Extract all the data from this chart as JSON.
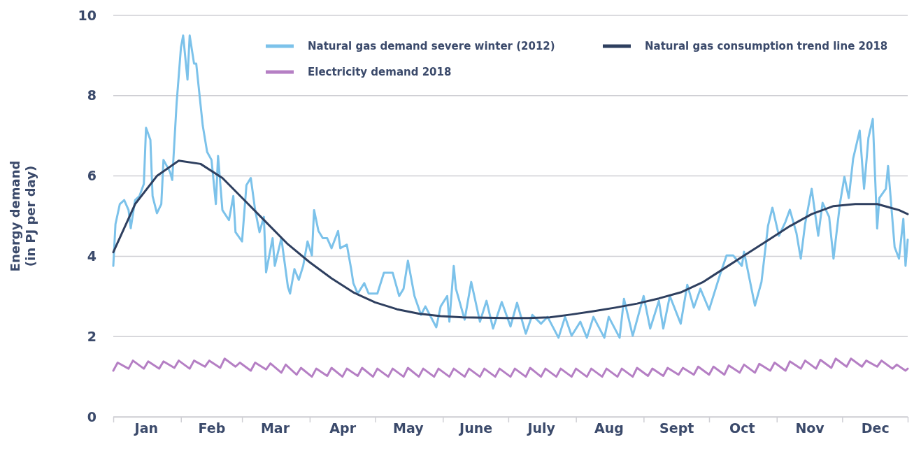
{
  "chart_data": {
    "type": "line",
    "ylabel": "Energy demand\n(in PJ per day)",
    "xlim": [
      "--01-01",
      "--12-31"
    ],
    "ylim": [
      0,
      10
    ],
    "yticks": [
      0,
      2,
      4,
      6,
      8,
      10
    ],
    "xticks": [
      {
        "value": "--01-01",
        "label": null
      },
      {
        "value": "--01-16",
        "label": "Jan"
      },
      {
        "value": "--02-01",
        "label": null
      },
      {
        "value": "--02-15",
        "label": "Feb"
      },
      {
        "value": "--03-01",
        "label": null
      },
      {
        "value": "--03-16",
        "label": "Mar"
      },
      {
        "value": "--04-01",
        "label": null
      },
      {
        "value": "--04-16",
        "label": "Apr"
      },
      {
        "value": "--05-01",
        "label": null
      },
      {
        "value": "--05-16",
        "label": "May"
      },
      {
        "value": "--06-01",
        "label": null
      },
      {
        "value": "--06-16",
        "label": "June"
      },
      {
        "value": "--07-01",
        "label": null
      },
      {
        "value": "--07-16",
        "label": "July"
      },
      {
        "value": "--08-01",
        "label": null
      },
      {
        "value": "--08-16",
        "label": "Aug"
      },
      {
        "value": "--09-01",
        "label": null
      },
      {
        "value": "--09-16",
        "label": "Sept"
      },
      {
        "value": "--10-01",
        "label": null
      },
      {
        "value": "--10-16",
        "label": "Oct"
      },
      {
        "value": "--11-01",
        "label": null
      },
      {
        "value": "--11-16",
        "label": "Nov"
      },
      {
        "value": "--12-01",
        "label": null
      },
      {
        "value": "--12-16",
        "label": "Dec"
      },
      {
        "value": "--12-31",
        "label": null
      }
    ],
    "grid": "y",
    "legend": "top right",
    "marker": "none",
    "line_style": "solid",
    "series": [
      {
        "name": "Natural gas demand severe winter (2012)",
        "color": "#7cc2ea",
        "x": [
          "--01-01",
          "--01-02",
          "--01-04",
          "--01-06",
          "--01-08",
          "--01-09",
          "--01-11",
          "--01-13",
          "--01-15",
          "--01-16",
          "--01-18",
          "--01-19",
          "--01-21",
          "--01-23",
          "--01-24",
          "--01-27",
          "--01-28",
          "--01-30",
          "--02-01",
          "--02-02",
          "--02-04",
          "--02-05",
          "--02-07",
          "--02-08",
          "--02-11",
          "--02-13",
          "--02-15",
          "--02-17",
          "--02-18",
          "--02-20",
          "--02-23",
          "--02-25",
          "--02-26",
          "--03-01",
          "--03-03",
          "--03-05",
          "--03-07",
          "--03-09",
          "--03-11",
          "--03-12",
          "--03-15",
          "--03-16",
          "--03-19",
          "--03-22",
          "--03-23",
          "--03-25",
          "--03-27",
          "--03-29",
          "--03-31",
          "--04-02",
          "--04-03",
          "--04-05",
          "--04-07",
          "--04-09",
          "--04-11",
          "--04-14",
          "--04-15",
          "--04-18",
          "--04-20",
          "--04-21",
          "--04-23",
          "--04-26",
          "--04-28",
          "--04-30",
          "--05-02",
          "--05-05",
          "--05-09",
          "--05-12",
          "--05-14",
          "--05-16",
          "--05-19",
          "--05-22",
          "--05-24",
          "--05-29",
          "--05-31",
          "--06-03",
          "--06-04",
          "--06-06",
          "--06-07",
          "--06-11",
          "--06-14",
          "--06-18",
          "--06-21",
          "--06-24",
          "--06-28",
          "--07-02",
          "--07-05",
          "--07-09",
          "--07-12",
          "--07-16",
          "--07-19",
          "--07-24",
          "--07-27",
          "--07-30",
          "--08-03",
          "--08-06",
          "--08-09",
          "--08-14",
          "--08-16",
          "--08-21",
          "--08-23",
          "--08-27",
          "--09-01",
          "--09-04",
          "--09-08",
          "--09-10",
          "--09-13",
          "--09-18",
          "--09-21",
          "--09-24",
          "--09-27",
          "--10-01",
          "--10-06",
          "--10-09",
          "--10-12",
          "--10-16",
          "--10-17",
          "--10-22",
          "--10-25",
          "--10-28",
          "--10-30",
          "--11-02",
          "--11-05",
          "--11-07",
          "--11-10",
          "--11-12",
          "--11-14",
          "--11-17",
          "--11-20",
          "--11-22",
          "--11-25",
          "--11-27",
          "--11-30",
          "--12-02",
          "--12-04",
          "--12-06",
          "--12-09",
          "--12-11",
          "--12-13",
          "--12-15",
          "--12-17",
          "--12-18",
          "--12-21",
          "--12-22",
          "--12-25",
          "--12-27",
          "--12-29",
          "--12-30",
          "--12-31"
        ],
        "values": [
          3.76,
          4.8,
          5.3,
          5.4,
          5.15,
          4.7,
          5.4,
          5.5,
          5.8,
          7.2,
          6.9,
          5.5,
          5.07,
          5.3,
          6.4,
          6.1,
          5.9,
          7.8,
          9.2,
          9.5,
          8.4,
          9.5,
          8.8,
          8.8,
          7.25,
          6.6,
          6.4,
          5.3,
          6.5,
          5.15,
          4.9,
          5.5,
          4.6,
          4.37,
          5.77,
          5.95,
          5.15,
          4.6,
          4.98,
          3.6,
          4.45,
          3.76,
          4.45,
          3.24,
          3.07,
          3.68,
          3.41,
          3.76,
          4.37,
          4.02,
          5.15,
          4.63,
          4.45,
          4.45,
          4.2,
          4.63,
          4.2,
          4.29,
          3.68,
          3.33,
          3.07,
          3.33,
          3.07,
          3.07,
          3.07,
          3.59,
          3.59,
          3.01,
          3.19,
          3.89,
          3.01,
          2.54,
          2.75,
          2.23,
          2.75,
          3.01,
          2.37,
          3.76,
          3.19,
          2.42,
          3.36,
          2.37,
          2.89,
          2.2,
          2.86,
          2.25,
          2.84,
          2.07,
          2.54,
          2.32,
          2.49,
          1.97,
          2.49,
          2.02,
          2.37,
          1.97,
          2.49,
          1.97,
          2.49,
          1.97,
          2.94,
          2.02,
          3.01,
          2.2,
          2.89,
          2.2,
          3.01,
          2.32,
          3.29,
          2.72,
          3.19,
          2.67,
          3.54,
          4.02,
          4.02,
          3.76,
          4.11,
          2.77,
          3.36,
          4.76,
          5.21,
          4.51,
          4.86,
          5.16,
          4.58,
          3.94,
          4.81,
          5.68,
          4.51,
          5.33,
          4.98,
          3.94,
          5.33,
          5.98,
          5.45,
          6.43,
          7.13,
          5.68,
          6.95,
          7.42,
          4.69,
          5.45,
          5.68,
          6.25,
          4.23,
          3.94,
          4.93,
          3.76,
          4.41
        ]
      },
      {
        "name": "Natural gas consumption trend line 2018",
        "color": "#2e3f5f",
        "x": [
          "--01-01",
          "--01-11",
          "--01-21",
          "--01-31",
          "--02-10",
          "--02-20",
          "--03-02",
          "--03-12",
          "--03-22",
          "--04-01",
          "--04-11",
          "--04-21",
          "--05-01",
          "--05-11",
          "--05-21",
          "--05-31",
          "--06-10",
          "--06-20",
          "--06-30",
          "--07-10",
          "--07-20",
          "--07-30",
          "--08-09",
          "--08-19",
          "--08-29",
          "--09-08",
          "--09-18",
          "--09-28",
          "--10-08",
          "--10-18",
          "--10-28",
          "--11-07",
          "--11-17",
          "--11-27",
          "--12-07",
          "--12-17",
          "--12-27",
          "--12-31"
        ],
        "values": [
          4.1,
          5.3,
          6.0,
          6.38,
          6.3,
          5.95,
          5.4,
          4.85,
          4.3,
          3.85,
          3.45,
          3.1,
          2.85,
          2.68,
          2.57,
          2.51,
          2.48,
          2.47,
          2.46,
          2.46,
          2.48,
          2.55,
          2.63,
          2.72,
          2.82,
          2.95,
          3.1,
          3.35,
          3.7,
          4.05,
          4.4,
          4.75,
          5.05,
          5.25,
          5.3,
          5.3,
          5.15,
          5.05
        ]
      },
      {
        "name": "Electricity demand 2018",
        "color": "#b57fc4",
        "x": [
          "--01-01",
          "--01-03",
          "--01-08",
          "--01-10",
          "--01-15",
          "--01-17",
          "--01-22",
          "--01-24",
          "--01-29",
          "--01-31",
          "--02-05",
          "--02-07",
          "--02-12",
          "--02-14",
          "--02-19",
          "--02-21",
          "--02-26",
          "--02-28",
          "--03-05",
          "--03-07",
          "--03-12",
          "--03-14",
          "--03-19",
          "--03-21",
          "--03-26",
          "--03-28",
          "--04-02",
          "--04-04",
          "--04-09",
          "--04-11",
          "--04-16",
          "--04-18",
          "--04-23",
          "--04-25",
          "--04-30",
          "--05-02",
          "--05-07",
          "--05-09",
          "--05-14",
          "--05-16",
          "--05-21",
          "--05-23",
          "--05-28",
          "--05-30",
          "--06-04",
          "--06-06",
          "--06-11",
          "--06-13",
          "--06-18",
          "--06-20",
          "--06-25",
          "--06-27",
          "--07-02",
          "--07-04",
          "--07-09",
          "--07-11",
          "--07-16",
          "--07-18",
          "--07-23",
          "--07-25",
          "--07-30",
          "--08-01",
          "--08-06",
          "--08-08",
          "--08-13",
          "--08-15",
          "--08-20",
          "--08-22",
          "--08-27",
          "--08-29",
          "--09-03",
          "--09-05",
          "--09-10",
          "--09-12",
          "--09-17",
          "--09-19",
          "--09-24",
          "--09-26",
          "--10-01",
          "--10-03",
          "--10-08",
          "--10-10",
          "--10-15",
          "--10-17",
          "--10-22",
          "--10-24",
          "--10-29",
          "--10-31",
          "--11-05",
          "--11-07",
          "--11-12",
          "--11-14",
          "--11-19",
          "--11-21",
          "--11-26",
          "--11-28",
          "--12-03",
          "--12-05",
          "--12-10",
          "--12-12",
          "--12-17",
          "--12-19",
          "--12-24",
          "--12-26",
          "--12-30",
          "--12-31"
        ],
        "values": [
          1.15,
          1.35,
          1.2,
          1.4,
          1.2,
          1.38,
          1.2,
          1.38,
          1.22,
          1.4,
          1.2,
          1.4,
          1.25,
          1.4,
          1.22,
          1.45,
          1.25,
          1.35,
          1.15,
          1.35,
          1.18,
          1.33,
          1.1,
          1.3,
          1.05,
          1.22,
          1.0,
          1.2,
          1.02,
          1.22,
          1.0,
          1.2,
          1.02,
          1.22,
          1.0,
          1.2,
          1.0,
          1.2,
          1.0,
          1.22,
          1.0,
          1.2,
          1.0,
          1.2,
          1.0,
          1.2,
          1.0,
          1.2,
          1.0,
          1.2,
          1.0,
          1.2,
          1.0,
          1.2,
          1.0,
          1.22,
          1.0,
          1.2,
          1.0,
          1.2,
          1.0,
          1.2,
          1.0,
          1.2,
          1.0,
          1.2,
          1.0,
          1.2,
          1.0,
          1.22,
          1.02,
          1.2,
          1.02,
          1.22,
          1.05,
          1.22,
          1.05,
          1.25,
          1.05,
          1.25,
          1.05,
          1.28,
          1.1,
          1.3,
          1.1,
          1.32,
          1.15,
          1.35,
          1.15,
          1.38,
          1.2,
          1.4,
          1.2,
          1.42,
          1.22,
          1.45,
          1.25,
          1.45,
          1.25,
          1.4,
          1.25,
          1.4,
          1.2,
          1.3,
          1.15,
          1.2
        ]
      }
    ]
  }
}
